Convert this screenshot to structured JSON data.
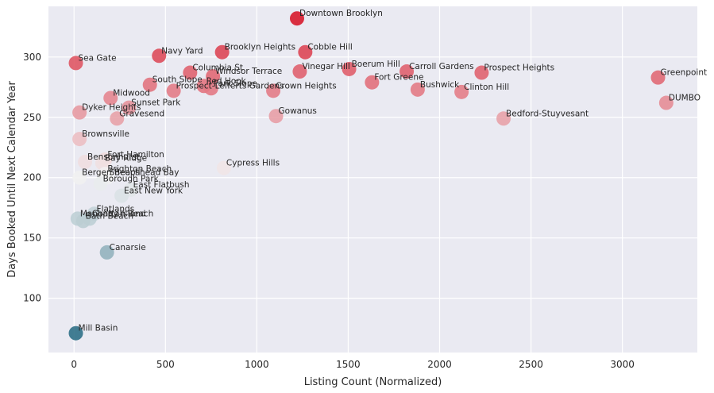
{
  "chart_data": {
    "type": "scatter",
    "title": "",
    "xlabel": "Listing Count (Normalized)",
    "ylabel": "Days Booked Until Next Calendar Year",
    "xlim": [
      -140,
      3410
    ],
    "ylim": [
      55,
      342
    ],
    "xticks": [
      0,
      500,
      1000,
      1500,
      2000,
      2500,
      3000
    ],
    "yticks": [
      100,
      150,
      200,
      250,
      300
    ],
    "grid": true,
    "color_scale": {
      "low": "#2e6f86",
      "mid": "#f2f2f2",
      "high": "#d7192c",
      "vmin": 70,
      "vmax": 332
    },
    "points": [
      {
        "label": "Downtown Brooklyn",
        "x": 1220,
        "y": 332
      },
      {
        "label": "Cobble Hill",
        "x": 1265,
        "y": 304
      },
      {
        "label": "Brooklyn Heights",
        "x": 810,
        "y": 304
      },
      {
        "label": "Navy Yard",
        "x": 465,
        "y": 301
      },
      {
        "label": "Sea Gate",
        "x": 10,
        "y": 295
      },
      {
        "label": "Columbia St",
        "x": 635,
        "y": 287
      },
      {
        "label": "Windsor Terrace",
        "x": 760,
        "y": 284
      },
      {
        "label": "Vinegar Hill",
        "x": 1235,
        "y": 288
      },
      {
        "label": "Boerum Hill",
        "x": 1505,
        "y": 290
      },
      {
        "label": "Carroll Gardens",
        "x": 1820,
        "y": 288
      },
      {
        "label": "Prospect Heights",
        "x": 2230,
        "y": 287
      },
      {
        "label": "Greenpoint",
        "x": 3195,
        "y": 283
      },
      {
        "label": "Fort Greene",
        "x": 1630,
        "y": 279
      },
      {
        "label": "South Slope",
        "x": 415,
        "y": 277
      },
      {
        "label": "Red Hook",
        "x": 710,
        "y": 276
      },
      {
        "label": "Park Slope",
        "x": 750,
        "y": 274
      },
      {
        "label": "Prospect-Lefferts Gardens",
        "x": 545,
        "y": 272
      },
      {
        "label": "Crown Heights",
        "x": 1090,
        "y": 272
      },
      {
        "label": "Bushwick",
        "x": 1880,
        "y": 273
      },
      {
        "label": "Clinton Hill",
        "x": 2120,
        "y": 271
      },
      {
        "label": "Midwood",
        "x": 200,
        "y": 266
      },
      {
        "label": "DUMBO",
        "x": 3240,
        "y": 262
      },
      {
        "label": "Sunset Park",
        "x": 300,
        "y": 258
      },
      {
        "label": "Dyker Heights",
        "x": 30,
        "y": 254
      },
      {
        "label": "Gowanus",
        "x": 1105,
        "y": 251
      },
      {
        "label": "Gravesend",
        "x": 235,
        "y": 249
      },
      {
        "label": "Bedford-Stuyvesant",
        "x": 2350,
        "y": 249
      },
      {
        "label": "Brownsville",
        "x": 30,
        "y": 232
      },
      {
        "label": "Fort Hamilton",
        "x": 170,
        "y": 215
      },
      {
        "label": "Bay Ridge",
        "x": 155,
        "y": 212
      },
      {
        "label": "Bensonhurst",
        "x": 60,
        "y": 213
      },
      {
        "label": "Cypress Hills",
        "x": 820,
        "y": 208
      },
      {
        "label": "Brighton Beach",
        "x": 170,
        "y": 203
      },
      {
        "label": "Sheepshead Bay",
        "x": 180,
        "y": 200
      },
      {
        "label": "Bergen Beach",
        "x": 30,
        "y": 200
      },
      {
        "label": "Borough Park",
        "x": 145,
        "y": 195
      },
      {
        "label": "East Flatbush",
        "x": 310,
        "y": 190
      },
      {
        "label": "East New York",
        "x": 260,
        "y": 185
      },
      {
        "label": "Flatlands",
        "x": 110,
        "y": 170
      },
      {
        "label": "Manhattan Beach",
        "x": 20,
        "y": 166
      },
      {
        "label": "Coney Island",
        "x": 85,
        "y": 166
      },
      {
        "label": "Bath Beach",
        "x": 50,
        "y": 164
      },
      {
        "label": "Canarsie",
        "x": 180,
        "y": 138
      },
      {
        "label": "Mill Basin",
        "x": 10,
        "y": 71
      }
    ]
  }
}
